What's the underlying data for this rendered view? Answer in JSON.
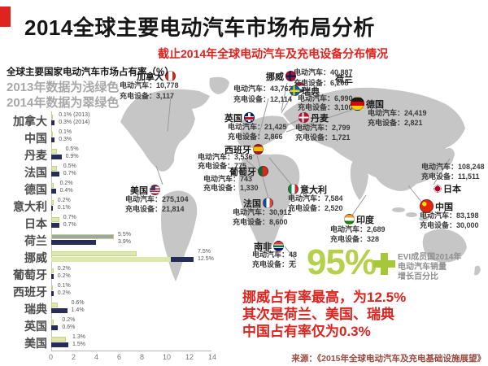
{
  "header": {
    "title": "2014全球主要电动汽车市场布局分析",
    "subtitle": "截止2014年全球电动汽车及充电设备分布情况"
  },
  "colors": {
    "accent_red": "#e0231e",
    "light_green": "#b5d04b",
    "bar_2013": "#dce8ad",
    "bar_2014": "#252c5a",
    "map_gray": "#c6c6c6"
  },
  "chart_data": {
    "type": "bar",
    "orientation": "horizontal",
    "title": "全球主要国家电动汽车市场占有率（%）",
    "legend": [
      {
        "label": "2013年数据为浅绿色",
        "color": "#dce8ad"
      },
      {
        "label": "2014年数据为翠绿色",
        "color": "#252c5a"
      }
    ],
    "xlim": [
      0,
      14
    ],
    "x_ticks": [
      0,
      2,
      4,
      6,
      8,
      10,
      12,
      14
    ],
    "unit": "%",
    "categories": [
      "加拿大",
      "中国",
      "丹麦",
      "法国",
      "德国",
      "意大利",
      "日本",
      "荷兰",
      "挪威",
      "葡萄牙",
      "西班牙",
      "瑞典",
      "英国",
      "美国"
    ],
    "series": [
      {
        "name": "2013",
        "color": "#dce8ad",
        "values": [
          0.1,
          0.1,
          0.5,
          0.5,
          0.2,
          0.2,
          0.7,
          5.5,
          7.5,
          0.2,
          0.1,
          0.6,
          0.2,
          1.3
        ]
      },
      {
        "name": "2014",
        "color": "#252c5a",
        "values": [
          0.3,
          0.3,
          0.9,
          0.7,
          0.4,
          0.1,
          0.7,
          3.9,
          12.5,
          0.2,
          0.2,
          1.4,
          0.6,
          1.5
        ]
      }
    ],
    "value_labels": [
      [
        "0.1% (2013)",
        "0.3% (2014)"
      ],
      [
        "0.1%",
        "0.3%"
      ],
      [
        "0.5%",
        "0.9%"
      ],
      [
        "0.5%",
        "0.7%"
      ],
      [
        "0.2%",
        "0.4%"
      ],
      [
        "0.2%",
        "0.1%"
      ],
      [
        "0.7%",
        "0.7%"
      ],
      [
        "5.5%",
        "3.9%"
      ],
      [
        "7.5%",
        "12.5%"
      ],
      [
        "0.2%",
        "0.2%"
      ],
      [
        "0.1%",
        "0.2%"
      ],
      [
        "0.6%",
        "1.4%"
      ],
      [
        "0.2%",
        "0.6%"
      ],
      [
        "1.3%",
        "1.5%"
      ]
    ]
  },
  "map": {
    "ev_label": "电动汽车",
    "charger_label": "充电设备",
    "countries": [
      {
        "name": "加拿大",
        "flag": "canada",
        "ev": "10,778",
        "charger": "3,117"
      },
      {
        "name": "美国",
        "flag": "usa",
        "ev": "275,104",
        "charger": "21,814"
      },
      {
        "name": "英国",
        "flag": "uk",
        "ev": "21,425",
        "charger": "2,866"
      },
      {
        "name": "荷兰",
        "flag": "netherlands",
        "ev": "43,762",
        "charger": "12,114"
      },
      {
        "name": "挪威",
        "flag": "norway",
        "ev": "40,887",
        "charger": "6,208"
      },
      {
        "name": "瑞典",
        "flag": "sweden",
        "ev": "6,990",
        "charger": "3,100"
      },
      {
        "name": "德国",
        "flag": "germany",
        "ev": "24,419",
        "charger": "2,821"
      },
      {
        "name": "丹麦",
        "flag": "denmark",
        "ev": "2,799",
        "charger": "1,721"
      },
      {
        "name": "西班牙",
        "flag": "spain",
        "ev": "3,536",
        "charger": "775"
      },
      {
        "name": "葡萄牙",
        "flag": "portugal",
        "ev": "743",
        "charger": "1,330"
      },
      {
        "name": "法国",
        "flag": "france",
        "ev": "30,912",
        "charger": "8,600"
      },
      {
        "name": "意大利",
        "flag": "italy",
        "ev": "7,584",
        "charger": "2,520"
      },
      {
        "name": "印度",
        "flag": "india",
        "ev": "2,689",
        "charger": "328"
      },
      {
        "name": "南非",
        "flag": "southafrica",
        "ev": "48",
        "charger": "无"
      },
      {
        "name": "日本",
        "flag": "japan",
        "ev": "108,248",
        "charger": "11,511"
      },
      {
        "name": "中国",
        "flag": "china",
        "ev": "83,198",
        "charger": "30,000"
      }
    ]
  },
  "highlight": {
    "big_number": "95%",
    "note_lines": [
      "EVI成员国2014年",
      "电动汽车销量",
      "增长百分比"
    ]
  },
  "summary_lines": [
    "挪威占有率最高，为12.5%",
    "其次是荷兰、美国、瑞典",
    "中国占有率仅为0.3%"
  ],
  "source": "来源：《2015年全球电动汽车及充电基础设施展望》"
}
